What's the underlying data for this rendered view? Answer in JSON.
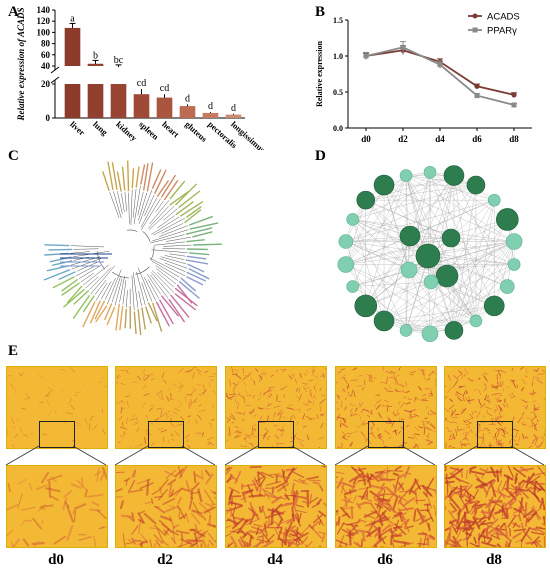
{
  "panels": {
    "a": "A",
    "b": "B",
    "c": "C",
    "d": "D",
    "e": "E"
  },
  "chart_data": [
    {
      "id": "A",
      "type": "bar",
      "ylabel": "Relative expression of ACADS",
      "axis_break": true,
      "y_ticks_upper": [
        40,
        60,
        80,
        100,
        120,
        140
      ],
      "y_ticks_lower": [
        0,
        20
      ],
      "categories": [
        "liver",
        "lung",
        "kidney",
        "spleen",
        "heart",
        "gluteus",
        "pectoralis",
        "longissimus dorsi"
      ],
      "values": [
        108,
        44,
        38,
        14,
        12,
        7,
        3,
        2
      ],
      "errors": [
        8,
        6,
        4,
        3,
        2,
        1,
        0.5,
        0.5
      ],
      "significance": [
        "a",
        "b",
        "bc",
        "cd",
        "cd",
        "d",
        "d",
        "d"
      ],
      "colors": [
        "#8c3a2a",
        "#923f2e",
        "#984433",
        "#9e4a37",
        "#a9553f",
        "#bd6b52",
        "#c77b62",
        "#cf8a72"
      ]
    },
    {
      "id": "B",
      "type": "line",
      "ylabel": "Relative expression",
      "categories": [
        "d0",
        "d2",
        "d4",
        "d6",
        "d8"
      ],
      "ylim": [
        0,
        1.5
      ],
      "y_ticks": [
        "0.0",
        "0.5",
        "1.0",
        "1.5"
      ],
      "series": [
        {
          "name": "ACADS",
          "values": [
            1.0,
            1.08,
            0.92,
            0.58,
            0.46
          ],
          "errors": [
            0.04,
            0.06,
            0.04,
            0.03,
            0.03
          ],
          "color": "#7a3b34"
        },
        {
          "name": "PPARγ",
          "values": [
            1.0,
            1.12,
            0.88,
            0.45,
            0.32
          ],
          "errors": [
            0.05,
            0.08,
            0.05,
            0.03,
            0.02
          ],
          "color": "#8a8a8a"
        }
      ]
    }
  ],
  "panel_e": {
    "days": [
      "d0",
      "d2",
      "d4",
      "d6",
      "d8"
    ],
    "stain_density": [
      0.05,
      0.35,
      0.6,
      0.65,
      0.8
    ]
  }
}
